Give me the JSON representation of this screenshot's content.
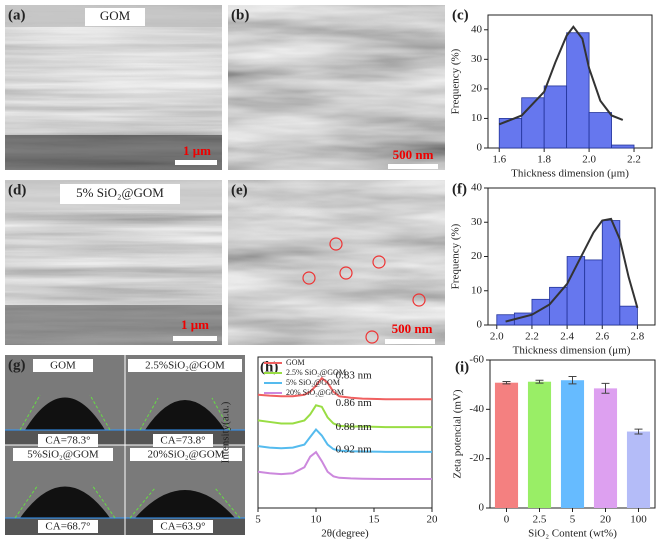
{
  "images": [
    {
      "label": "(a)",
      "texts": [
        "GOM",
        "1 μm"
      ]
    },
    {
      "label": "(b)",
      "texts": [
        "500 nm"
      ]
    },
    {
      "label": "(d)",
      "texts": [
        "5% SiO₂@GOM",
        "1 μm"
      ]
    },
    {
      "label": "(e)",
      "texts": [
        "500 nm"
      ]
    },
    {
      "label": "(g)",
      "texts": [
        "GOM",
        "2.5%SiO₂@GOM",
        "CA=78.3°",
        "CA=73.8°",
        "5%SiO₂@GOM",
        "20%SiO₂@GOM",
        "CA=68.7°",
        "CA=63.9°"
      ]
    }
  ],
  "chart_data": [
    {
      "type": "histogram",
      "label": "(c)",
      "xlabel": "Thickness dimension (μm)",
      "ylabel": "Frequency (%)",
      "bins": [
        1.6,
        1.7,
        1.8,
        1.9,
        2.0,
        2.1,
        2.2
      ],
      "values": [
        10,
        17,
        21,
        39,
        12,
        1
      ],
      "color": "#6677ee",
      "fit": {
        "x": [
          1.6,
          1.7,
          1.8,
          1.85,
          1.9,
          1.93,
          1.97,
          2.0,
          2.05,
          2.1,
          2.15
        ],
        "values": [
          8,
          11,
          19,
          29,
          38,
          41,
          37,
          27,
          16,
          11,
          9.5
        ],
        "color": "#333333"
      },
      "xlim": [
        1.55,
        2.28
      ],
      "ylim": [
        0,
        45
      ],
      "xticks": [
        1.6,
        1.8,
        {
          "value": 2,
          "label": "2.0"
        },
        2.2
      ],
      "yticks": [
        0,
        10,
        20,
        30,
        40
      ]
    },
    {
      "type": "histogram",
      "label": "(f)",
      "xlabel": "Thickness dimension (μm)",
      "ylabel": "Frequency (%)",
      "bins": [
        2.0,
        2.1,
        2.2,
        2.3,
        2.4,
        2.5,
        2.6,
        2.7,
        2.8
      ],
      "values": [
        3,
        3.5,
        7.5,
        11,
        20,
        19,
        30.5,
        5.5
      ],
      "color": "#6677ee",
      "fit": {
        "x": [
          2.05,
          2.2,
          2.3,
          2.4,
          2.5,
          2.55,
          2.6,
          2.65,
          2.7,
          2.75,
          2.8
        ],
        "values": [
          1,
          3,
          6,
          12,
          22,
          27,
          30.5,
          31,
          25,
          14,
          5
        ],
        "color": "#333333"
      },
      "xlim": [
        1.95,
        2.9
      ],
      "ylim": [
        0,
        40
      ],
      "xticks": [
        {
          "value": 2,
          "label": "2.0"
        },
        2.2,
        2.4,
        2.6,
        2.8
      ],
      "yticks": [
        0,
        10,
        20,
        30,
        40
      ]
    },
    {
      "type": "line",
      "label": "(h)",
      "xlabel": "2θ(degree)",
      "ylabel": "Intensity(a.u.)",
      "x": [
        5,
        6,
        7,
        8,
        9,
        9.5,
        10,
        10.5,
        11,
        11.5,
        12,
        13,
        14,
        16,
        18,
        20
      ],
      "series": [
        {
          "name": "GOM",
          "color": "#f06060",
          "values": [
            3.75,
            3.72,
            3.7,
            3.7,
            3.75,
            3.85,
            4.05,
            4.3,
            4.15,
            3.85,
            3.7,
            3.65,
            3.62,
            3.6,
            3.6,
            3.6
          ]
        },
        {
          "name": "2.5% SiO₂@GOM",
          "color": "#99dd44",
          "values": [
            2.9,
            2.85,
            2.8,
            2.8,
            2.9,
            3.1,
            3.4,
            3.35,
            3.0,
            2.8,
            2.72,
            2.7,
            2.7,
            2.68,
            2.68,
            2.68
          ]
        },
        {
          "name": "5% SiO₂@GOM",
          "color": "#55bbee",
          "values": [
            2.05,
            2.0,
            1.98,
            2.0,
            2.1,
            2.35,
            2.6,
            2.4,
            2.1,
            1.95,
            1.9,
            1.88,
            1.87,
            1.86,
            1.86,
            1.86
          ]
        },
        {
          "name": "20% SiO₂@GOM",
          "color": "#cc88dd",
          "values": [
            1.2,
            1.15,
            1.12,
            1.15,
            1.35,
            1.7,
            1.85,
            1.55,
            1.2,
            1.05,
            1.0,
            0.98,
            0.97,
            0.96,
            0.96,
            0.96
          ]
        }
      ],
      "annotations": [
        "0.83 nm",
        "0.86 nm",
        "0.88 nm",
        "0.92 nm"
      ],
      "xlim": [
        5,
        20
      ],
      "ylim": [
        0,
        5
      ],
      "xticks": [
        5,
        10,
        15,
        20
      ]
    },
    {
      "type": "bar",
      "label": "(i)",
      "xlabel": "SiO₂ Content (wt%)",
      "ylabel": "Zeta potencial (mV)",
      "categories": [
        "0",
        "2.5",
        "5",
        "20",
        "100"
      ],
      "values": [
        -50.8,
        -51.2,
        -51.8,
        -48.5,
        -31
      ],
      "errors": [
        0.5,
        0.6,
        1.5,
        2,
        1
      ],
      "colors": [
        "#f48080",
        "#99ee66",
        "#66bbff",
        "#dda0f0",
        "#b4bcf8"
      ],
      "ylim": [
        0,
        -60
      ],
      "yticks": [
        0,
        -20,
        -40,
        -60
      ]
    }
  ]
}
